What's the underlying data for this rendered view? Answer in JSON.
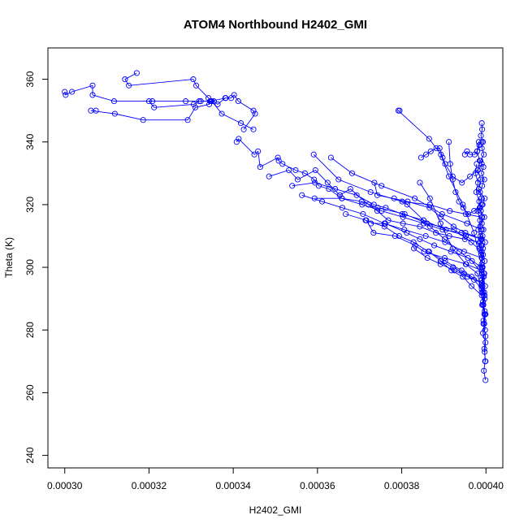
{
  "chart_data": {
    "type": "line",
    "title": "ATOM4 Northbound H2402_GMI",
    "xlabel": "H2402_GMI",
    "ylabel": "Theta (K)",
    "xlim": [
      0.000296,
      0.000404
    ],
    "ylim": [
      236,
      370
    ],
    "xticks": [
      0.0003,
      0.00032,
      0.00034,
      0.00036,
      0.00038,
      0.0004
    ],
    "xtick_labels": [
      "0.00030",
      "0.00032",
      "0.00034",
      "0.00036",
      "0.00038",
      "0.00040"
    ],
    "yticks": [
      240,
      260,
      280,
      300,
      320,
      340,
      360
    ],
    "ytick_labels": [
      "240",
      "260",
      "280",
      "300",
      "320",
      "340",
      "360"
    ],
    "grid": false,
    "markers": "open-circle",
    "series_color": "#0000ff",
    "series": [
      {
        "x": [
          0.0003171,
          0.0003143,
          0.0003152,
          0.0003305,
          0.0003312,
          0.0003341,
          0.0003354,
          0.0003363,
          0.0003381,
          0.0003395,
          0.0003402,
          0.0003412,
          0.0003448,
          0.0003452,
          0.0003425
        ],
        "y": [
          362,
          360,
          358,
          360,
          358,
          354,
          353,
          352,
          354,
          354,
          355,
          353,
          350,
          349,
          344
        ]
      },
      {
        "x": [
          0.0003,
          0.0003002,
          0.0003017,
          0.0003066,
          0.0003066,
          0.0003117,
          0.0003208,
          0.0003287,
          0.0003323,
          0.0003349,
          0.0003373,
          0.0003418,
          0.0003448
        ],
        "y": [
          356,
          355,
          356,
          358,
          355,
          353,
          353,
          353,
          353,
          353,
          349,
          346,
          344
        ]
      },
      {
        "x": [
          0.0003074,
          0.0003062,
          0.0003119,
          0.0003186,
          0.0003292,
          0.000331,
          0.0003343,
          0.0003347,
          0.0003382
        ],
        "y": [
          350,
          350,
          349,
          347,
          347,
          351,
          352,
          353,
          354
        ]
      },
      {
        "x": [
          0.00032,
          0.0003212,
          0.0003306,
          0.0003319,
          0.0003345
        ],
        "y": [
          353,
          351,
          352,
          353,
          353
        ]
      },
      {
        "x": [
          0.0003408,
          0.0003413,
          0.000345,
          0.0003459,
          0.0003464,
          0.0003506,
          0.0003508,
          0.0003517,
          0.0003548,
          0.000357,
          0.0003592,
          0.0003603,
          0.0003627,
          0.0003658,
          0.0003705,
          0.0003743,
          0.0003807,
          0.000386,
          0.0003924,
          0.0003965,
          0.000399
        ],
        "y": [
          340,
          341,
          336,
          337,
          332,
          335,
          334,
          333,
          331,
          330,
          328,
          326,
          325,
          322,
          321,
          319,
          317,
          314,
          312,
          308,
          305
        ]
      },
      {
        "x": [
          0.0003485,
          0.0003532,
          0.0003553,
          0.0003595,
          0.0003624,
          0.0003653,
          0.0003678,
          0.0003721,
          0.0003742,
          0.0003768,
          0.0003803,
          0.0003843,
          0.0003881,
          0.0003913,
          0.000395,
          0.0003985
        ],
        "y": [
          329,
          331,
          328,
          331,
          327,
          323,
          325,
          320,
          318,
          315,
          314,
          313,
          311,
          310,
          309,
          308
        ]
      },
      {
        "x": [
          0.000354,
          0.0003594,
          0.0003642,
          0.0003693,
          0.0003734,
          0.0003762,
          0.0003801,
          0.0003852,
          0.0003905,
          0.0003952,
          0.000399
        ],
        "y": [
          326,
          327,
          325,
          323,
          320,
          319,
          317,
          315,
          312,
          310,
          307
        ]
      },
      {
        "x": [
          0.0003563,
          0.0003611,
          0.0003659,
          0.0003708,
          0.0003759,
          0.0003806,
          0.0003857,
          0.0003903,
          0.0003948,
          0.000399
        ],
        "y": [
          323,
          321,
          319,
          317,
          314,
          312,
          310,
          308,
          305,
          303
        ]
      },
      {
        "x": [
          0.0003591,
          0.000365,
          0.0003726,
          0.0003801,
          0.0003867,
          0.0003914,
          0.0003952,
          0.000399
        ],
        "y": [
          336,
          328,
          324,
          321,
          320,
          318,
          317,
          316
        ]
      },
      {
        "x": [
          0.0003593,
          0.0003658,
          0.0003706,
          0.0003752,
          0.0003803,
          0.0003852,
          0.0003897,
          0.0003942,
          0.000399
        ],
        "y": [
          322,
          322,
          320,
          318,
          316,
          314,
          312,
          311,
          309
        ]
      },
      {
        "x": [
          0.0003632,
          0.0003682,
          0.0003752,
          0.0003831,
          0.0003896,
          0.0003955,
          0.000399
        ],
        "y": [
          335,
          330,
          326,
          322,
          317,
          314,
          312
        ]
      },
      {
        "x": [
          0.0003735,
          0.0003742,
          0.0003814,
          0.0003866,
          0.0003893,
          0.0003923,
          0.0003951,
          0.000399
        ],
        "y": [
          327,
          323,
          321,
          319,
          316,
          313,
          311,
          309
        ]
      },
      {
        "x": [
          0.0003667,
          0.0003716,
          0.0003733,
          0.0003784,
          0.0003832,
          0.0003853,
          0.0003902,
          0.0003953,
          0.000399
        ],
        "y": [
          317,
          315,
          311,
          310,
          307,
          305,
          303,
          301,
          299
        ]
      },
      {
        "x": [
          0.0003727,
          0.0003761,
          0.0003812,
          0.0003843,
          0.0003877,
          0.0003917,
          0.0003957,
          0.000399
        ],
        "y": [
          314,
          314,
          311,
          309,
          307,
          305,
          303,
          300
        ]
      },
      {
        "x": [
          0.0003714,
          0.0003759,
          0.0003794,
          0.0003828,
          0.0003863,
          0.0003903,
          0.0003942,
          0.0003966,
          0.000399
        ],
        "y": [
          315,
          313,
          310,
          308,
          305,
          302,
          299,
          297,
          295
        ]
      },
      {
        "x": [
          0.0003782,
          0.0003813,
          0.0003852,
          0.0003867,
          0.0003902,
          0.0003937,
          0.0003967,
          0.000399
        ],
        "y": [
          322,
          320,
          315,
          313,
          309,
          305,
          302,
          298
        ]
      },
      {
        "x": [
          0.0003795,
          0.0003792,
          0.0003865,
          0.0003893,
          0.0003912,
          0.0003945,
          0.0003972,
          0.000399
        ],
        "y": [
          350,
          350,
          341,
          336,
          329,
          320,
          311,
          300
        ]
      },
      {
        "x": [
          0.0003843,
          0.0003867,
          0.0003892,
          0.0003921,
          0.0003952,
          0.000398,
          0.000399
        ],
        "y": [
          327,
          322,
          314,
          306,
          301,
          298,
          292
        ]
      },
      {
        "x": [
          0.0003829,
          0.0003861,
          0.0003892,
          0.0003925,
          0.0003956,
          0.000399
        ],
        "y": [
          306,
          303,
          301,
          299,
          297,
          295
        ]
      },
      {
        "x": [
          0.0003865,
          0.0003893,
          0.0003922,
          0.0003948,
          0.0003972,
          0.000399
        ],
        "y": [
          305,
          302,
          300,
          298,
          296,
          293
        ]
      },
      {
        "x": [
          0.0003892,
          0.0003918,
          0.0003945,
          0.0003966,
          0.000399
        ],
        "y": [
          302,
          299,
          297,
          294,
          291
        ]
      },
      {
        "x": [
          0.0003846,
          0.0003858,
          0.0003869,
          0.0003882,
          0.000389,
          0.0003897,
          0.0003903,
          0.0003921,
          0.0003943,
          0.0003962,
          0.000398,
          0.000399
        ],
        "y": [
          335,
          336,
          337,
          338,
          338,
          335,
          333,
          329,
          327,
          329,
          331,
          333
        ]
      },
      {
        "x": [
          0.0003912,
          0.0003915,
          0.0003921,
          0.0003928,
          0.0003936,
          0.0003946,
          0.0003958,
          0.0003972,
          0.0003986,
          0.000399
        ],
        "y": [
          340,
          333,
          328,
          324,
          321,
          319,
          317,
          318,
          319,
          320
        ]
      },
      {
        "x": [
          0.000395,
          0.0003955,
          0.0003962,
          0.0003973,
          0.0003979,
          0.0003984,
          0.000399
        ],
        "y": [
          336,
          337,
          336,
          336,
          337,
          339,
          340
        ]
      },
      {
        "x": [
          0.000399,
          0.0003991,
          0.0003988,
          0.0003993,
          0.000399,
          0.0003995,
          0.0003987,
          0.0003994,
          0.0003989,
          0.0003996,
          0.0003991,
          0.0003986,
          0.0003997,
          0.0003992,
          0.0003988,
          0.0003996,
          0.000399,
          0.0003994,
          0.0003987,
          0.0003998,
          0.0003993,
          0.0003989,
          0.0003997,
          0.0003992,
          0.0003996,
          0.000399,
          0.0003998,
          0.0003993,
          0.0003997,
          0.0003994,
          0.0003999,
          0.0003996,
          0.0003993,
          0.0003999,
          0.0003997,
          0.0003998,
          0.0003995,
          0.0003999
        ],
        "y": [
          346,
          344,
          342,
          340,
          338,
          336,
          334,
          332,
          330,
          328,
          326,
          324,
          322,
          320,
          318,
          316,
          314,
          312,
          310,
          308,
          306,
          304,
          302,
          300,
          298,
          296,
          294,
          292,
          290,
          288,
          285,
          282,
          279,
          276,
          273,
          270,
          267,
          264
        ]
      },
      {
        "x": [
          0.0003983,
          0.0003979,
          0.0003985,
          0.0003981,
          0.0003987,
          0.0003983,
          0.0003989,
          0.0003985,
          0.0003991,
          0.0003986,
          0.0003992,
          0.0003988,
          0.0003993,
          0.000399,
          0.0003995,
          0.0003991,
          0.0003996,
          0.0003993,
          0.0003997,
          0.0003994
        ],
        "y": [
          340,
          337,
          334,
          331,
          328,
          325,
          322,
          319,
          316,
          313,
          310,
          307,
          304,
          301,
          298,
          295,
          292,
          289,
          286,
          283
        ]
      },
      {
        "x": [
          0.0003978,
          0.0003975,
          0.0003981,
          0.0003977,
          0.0003984,
          0.000398,
          0.0003986,
          0.0003982,
          0.0003988,
          0.0003984,
          0.000399,
          0.0003986,
          0.0003992,
          0.0003989,
          0.0003994,
          0.0003991,
          0.0003996,
          0.0003998
        ],
        "y": [
          333,
          330,
          327,
          324,
          321,
          318,
          315,
          312,
          309,
          306,
          303,
          300,
          297,
          294,
          291,
          288,
          285,
          280
        ]
      },
      {
        "x": [
          0.0003992,
          0.0003995,
          0.0003991,
          0.0003997,
          0.0003993,
          0.0003998,
          0.0003994,
          0.0003999,
          0.0003996,
          0.0003999
        ],
        "y": [
          300,
          297,
          294,
          291,
          288,
          285,
          282,
          278,
          274,
          270
        ]
      }
    ]
  }
}
